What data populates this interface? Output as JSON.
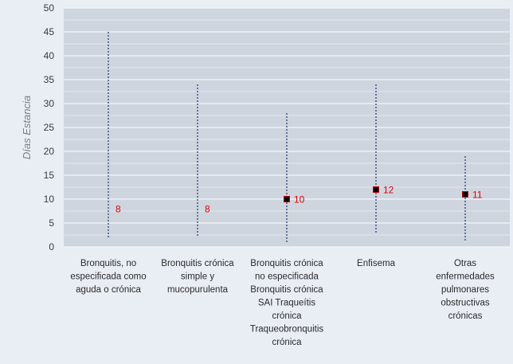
{
  "chart_data": {
    "type": "scatter",
    "subtype": "high-low-mean",
    "title": "",
    "xlabel": "",
    "ylabel": "Días Estancia",
    "ylim": [
      0,
      50
    ],
    "ytick_step": 5,
    "yticks": [
      "0",
      "5",
      "10",
      "15",
      "20",
      "25",
      "30",
      "35",
      "40",
      "45",
      "50"
    ],
    "grid": true,
    "legend": "none",
    "categories": [
      {
        "lines": [
          "Bronquitis, no",
          "especificada como",
          "aguda o crónica"
        ]
      },
      {
        "lines": [
          "Bronquitis crónica",
          "simple y",
          "mucopurulenta"
        ]
      },
      {
        "lines": [
          "Bronquitis crónica",
          "no especificada",
          "Bronquitis crónica",
          "SAI Traqueítis",
          "crónica",
          "Traqueobronquitis",
          "crónica"
        ]
      },
      {
        "lines": [
          "Enfisema"
        ]
      },
      {
        "lines": [
          "Otras",
          "enfermedades",
          "pulmonares",
          "obstructivas",
          "crónicas"
        ]
      }
    ],
    "series": [
      {
        "label_text": "8",
        "mean": 8,
        "low": 2,
        "high": 45,
        "marker": false
      },
      {
        "label_text": "8",
        "mean": 8,
        "low": 2,
        "high": 34,
        "marker": false
      },
      {
        "label_text": "10",
        "mean": 10,
        "low": 1,
        "high": 28,
        "marker": true
      },
      {
        "label_text": "12",
        "mean": 12,
        "low": 3,
        "high": 34,
        "marker": true
      },
      {
        "label_text": "11",
        "mean": 11,
        "low": 1,
        "high": 19,
        "marker": true
      }
    ],
    "colors": {
      "background": "#e9eef5",
      "plot": "#ced5df",
      "grid": "#f3f6fa",
      "whisker": "#2c3f78",
      "marker": "#000000",
      "marker_edge": "#c00000",
      "data_label": "#e00000"
    }
  }
}
